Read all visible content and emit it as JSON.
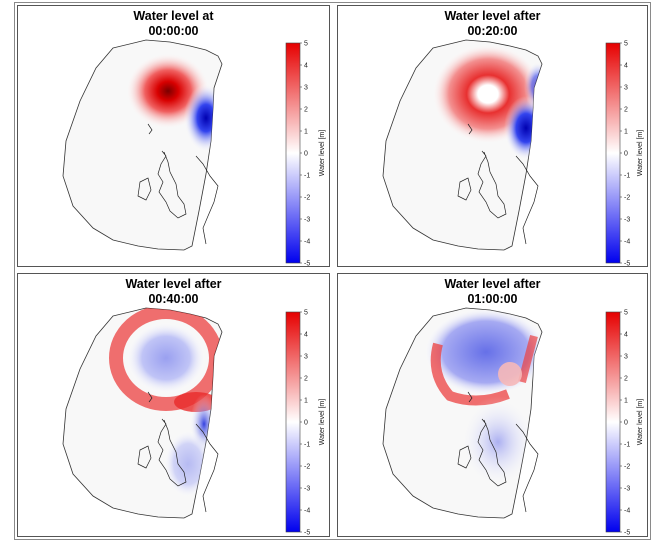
{
  "colorbar": {
    "label": "Water level [m]",
    "ticks": [
      "5",
      "4",
      "3",
      "2",
      "1",
      "0",
      "-1",
      "-2",
      "-3",
      "-4",
      "-5"
    ],
    "range": [
      -5,
      5
    ],
    "colors": {
      "high": "#e60000",
      "mid": "#ffffff",
      "low": "#0000ee"
    }
  },
  "panels": [
    {
      "title": "Water level at\n00:00:00"
    },
    {
      "title": "Water level after\n00:20:00"
    },
    {
      "title": "Water level after\n00:40:00"
    },
    {
      "title": "Water level after\n01:00:00"
    }
  ],
  "chart_data": [
    {
      "type": "heatmap",
      "title": "Water level at 00:00:00",
      "zlabel": "Water level [m]",
      "zlim": [
        -5,
        5
      ]
    },
    {
      "type": "heatmap",
      "title": "Water level after 00:20:00",
      "zlabel": "Water level [m]",
      "zlim": [
        -5,
        5
      ]
    },
    {
      "type": "heatmap",
      "title": "Water level after 00:40:00",
      "zlabel": "Water level [m]",
      "zlim": [
        -5,
        5
      ]
    },
    {
      "type": "heatmap",
      "title": "Water level after 01:00:00",
      "zlabel": "Water level [m]",
      "zlim": [
        -5,
        5
      ]
    }
  ]
}
